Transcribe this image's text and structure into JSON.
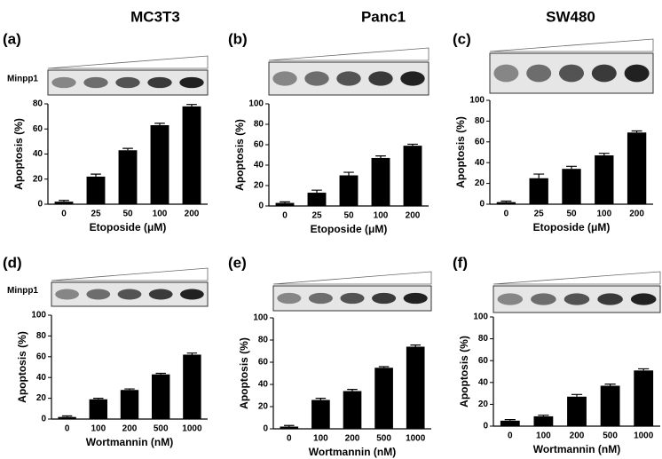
{
  "column_titles": [
    "MC3T3",
    "Panc1",
    "SW480"
  ],
  "chart_data": [
    {
      "type": "bar",
      "label": "(a)",
      "blot_label": "Minpp1",
      "categories": [
        "0",
        "25",
        "50",
        "100",
        "200"
      ],
      "values": [
        2,
        22,
        43,
        63,
        78
      ],
      "errors": [
        1,
        2,
        1.5,
        1.5,
        1.5
      ],
      "color": "#000000",
      "ylim": [
        0,
        80
      ],
      "yticks": [
        0,
        20,
        40,
        60,
        80
      ],
      "ylabel": "Apoptosis (%)",
      "xlabel": "Etoposide (μM)"
    },
    {
      "type": "bar",
      "label": "(b)",
      "categories": [
        "0",
        "25",
        "50",
        "100",
        "200"
      ],
      "values": [
        3,
        13,
        30,
        47,
        59
      ],
      "errors": [
        1,
        2.5,
        3,
        2,
        1.5
      ],
      "color": "#000000",
      "ylim": [
        0,
        100
      ],
      "yticks": [
        0,
        20,
        40,
        60,
        80,
        100
      ],
      "ylabel": "Apoptosis (%)",
      "xlabel": "Etoposide (μM)"
    },
    {
      "type": "bar",
      "label": "(c)",
      "categories": [
        "0",
        "25",
        "50",
        "100",
        "200"
      ],
      "values": [
        2,
        25,
        34,
        47,
        69
      ],
      "errors": [
        1,
        4,
        2.5,
        2,
        1.5
      ],
      "color": "#000000",
      "ylim": [
        0,
        100
      ],
      "yticks": [
        0,
        20,
        40,
        60,
        80,
        100
      ],
      "ylabel": "Apoptosis (%)",
      "xlabel": "Etoposide (μM)"
    },
    {
      "type": "bar",
      "label": "(d)",
      "blot_label": "Minpp1",
      "categories": [
        "0",
        "100",
        "200",
        "500",
        "1000"
      ],
      "values": [
        2,
        19,
        28,
        43,
        62
      ],
      "errors": [
        1,
        1,
        1,
        1,
        1.5
      ],
      "color": "#000000",
      "ylim": [
        0,
        100
      ],
      "yticks": [
        0,
        20,
        40,
        60,
        80,
        100
      ],
      "ylabel": "Apoptosis (%)",
      "xlabel": "Wortmannin (nM)"
    },
    {
      "type": "bar",
      "label": "(e)",
      "categories": [
        "0",
        "100",
        "200",
        "500",
        "1000"
      ],
      "values": [
        2,
        26,
        34,
        55,
        74
      ],
      "errors": [
        1,
        1.5,
        1.5,
        1,
        1.5
      ],
      "color": "#000000",
      "ylim": [
        0,
        100
      ],
      "yticks": [
        0,
        20,
        40,
        60,
        80,
        100
      ],
      "ylabel": "Apoptosis (%)",
      "xlabel": "Wortmannin (nM)"
    },
    {
      "type": "bar",
      "label": "(f)",
      "categories": [
        "0",
        "100",
        "200",
        "500",
        "1000"
      ],
      "values": [
        5,
        9,
        27,
        37,
        51
      ],
      "errors": [
        1,
        1,
        2,
        1.5,
        1.5
      ],
      "color": "#000000",
      "ylim": [
        0,
        100
      ],
      "yticks": [
        0,
        20,
        40,
        60,
        80,
        100
      ],
      "ylabel": "Apoptosis (%)",
      "xlabel": "Wortmannin (nM)"
    }
  ]
}
